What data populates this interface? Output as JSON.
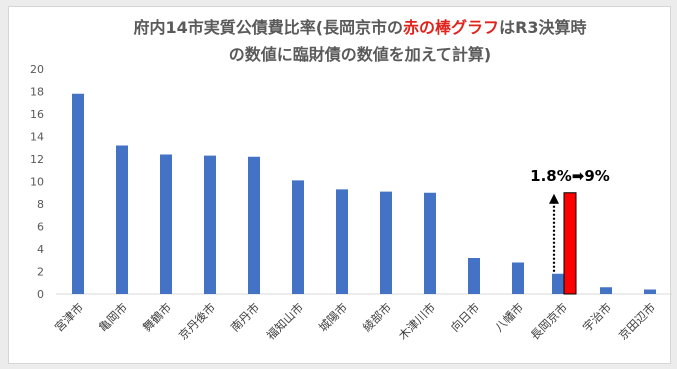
{
  "chart_data": {
    "type": "bar",
    "title_parts": [
      {
        "text": "府内14市実質公債費比率(長岡京市の",
        "highlight": false
      },
      {
        "text": "赤の棒グラフ",
        "highlight": true
      },
      {
        "text": "はR3決算時",
        "highlight": false
      },
      {
        "text": "の数値に臨財債の数値を加えて計算)",
        "highlight": false
      }
    ],
    "categories": [
      "宮津市",
      "亀岡市",
      "舞鶴市",
      "京丹後市",
      "南丹市",
      "福知山市",
      "城陽市",
      "綾部市",
      "木津川市",
      "向日市",
      "八幡市",
      "長岡京市",
      "宇治市",
      "京田辺市"
    ],
    "values": [
      17.8,
      13.2,
      12.4,
      12.3,
      12.2,
      10.1,
      9.3,
      9.1,
      9.0,
      3.2,
      2.8,
      1.8,
      0.6,
      0.4
    ],
    "highlight_bar": {
      "category": "長岡京市",
      "value": 9.0,
      "color": "#ff0000"
    },
    "ylim": [
      0,
      20
    ],
    "yticks": [
      0,
      2,
      4,
      6,
      8,
      10,
      12,
      14,
      16,
      18,
      20
    ],
    "grid": false,
    "bar_color": "#4472c4",
    "annotation": "1.8%➡9%"
  }
}
